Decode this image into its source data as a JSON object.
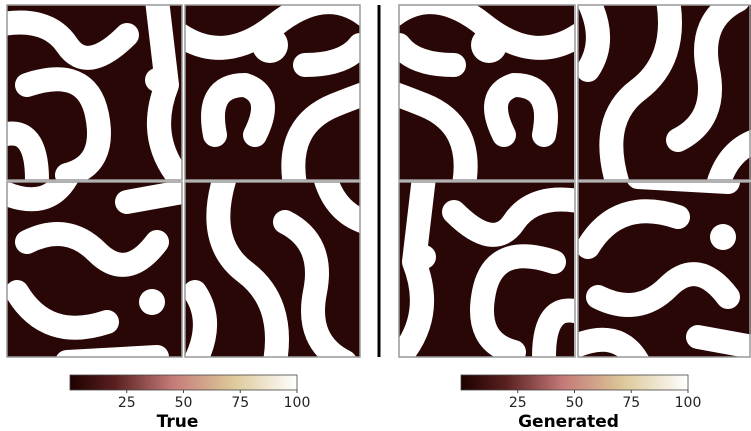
{
  "panels": [
    {
      "label": "True",
      "colorbar": {
        "lim": [
          0,
          100
        ],
        "ticks": [
          25,
          50,
          75,
          100
        ]
      }
    },
    {
      "label": "Generated",
      "colorbar": {
        "lim": [
          0,
          100
        ],
        "ticks": [
          25,
          50,
          75,
          100
        ]
      }
    }
  ]
}
